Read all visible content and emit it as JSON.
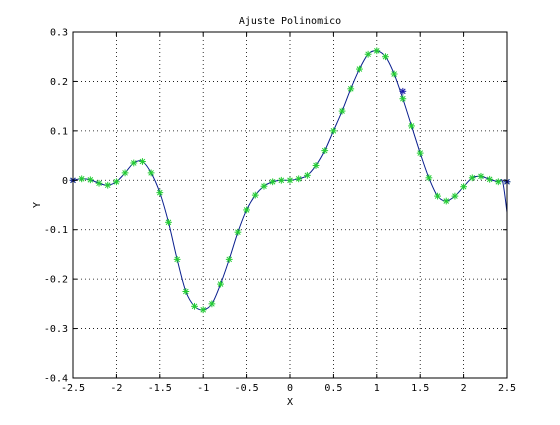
{
  "chart_data": {
    "type": "line",
    "title": "Ajuste Polinomico",
    "xlabel": "X",
    "ylabel": "Y",
    "xlim": [
      -2.5,
      2.5
    ],
    "ylim": [
      -0.4,
      0.3
    ],
    "grid": true,
    "legend": "none",
    "x_ticks": [
      -2.5,
      -2,
      -1.5,
      -1,
      -0.5,
      0,
      0.5,
      1,
      1.5,
      2,
      2.5
    ],
    "x_tick_labels": [
      "-2.5",
      "-2",
      "-1.5",
      "-1",
      "-0.5",
      "0",
      "0.5",
      "1",
      "1.5",
      "2",
      "2.5"
    ],
    "y_ticks": [
      -0.4,
      -0.3,
      -0.2,
      -0.1,
      0,
      0.1,
      0.2,
      0.3
    ],
    "y_tick_labels": [
      "-0.4",
      "-0.3",
      "-0.2",
      "-0.1",
      "0",
      "0.1",
      "0.2",
      "0.3"
    ],
    "series": [
      {
        "style": "line",
        "color": "#0a1f8f",
        "x": [
          -2.5,
          -2.4,
          -2.3,
          -2.2,
          -2.1,
          -2.0,
          -1.9,
          -1.8,
          -1.7,
          -1.6,
          -1.5,
          -1.4,
          -1.3,
          -1.2,
          -1.1,
          -1.0,
          -0.9,
          -0.8,
          -0.7,
          -0.6,
          -0.5,
          -0.4,
          -0.3,
          -0.2,
          -0.1,
          0.0,
          0.1,
          0.2,
          0.3,
          0.4,
          0.5,
          0.6,
          0.7,
          0.8,
          0.9,
          1.0,
          1.1,
          1.2,
          1.3,
          1.4,
          1.5,
          1.6,
          1.7,
          1.8,
          1.9,
          2.0,
          2.1,
          2.2,
          2.3,
          2.4,
          2.45,
          2.5
        ],
        "y": [
          0.0,
          0.003,
          0.001,
          -0.006,
          -0.01,
          -0.003,
          0.015,
          0.035,
          0.038,
          0.015,
          -0.025,
          -0.085,
          -0.16,
          -0.225,
          -0.255,
          -0.262,
          -0.25,
          -0.21,
          -0.16,
          -0.105,
          -0.06,
          -0.03,
          -0.012,
          -0.003,
          0.0,
          0.0,
          0.003,
          0.01,
          0.03,
          0.06,
          0.1,
          0.14,
          0.185,
          0.225,
          0.255,
          0.262,
          0.25,
          0.215,
          0.165,
          0.11,
          0.055,
          0.005,
          -0.032,
          -0.042,
          -0.032,
          -0.013,
          0.005,
          0.008,
          0.002,
          -0.003,
          -0.003,
          -0.065
        ]
      },
      {
        "style": "markers",
        "marker": "*",
        "color": "#22cc33",
        "x": [
          -2.5,
          -2.4,
          -2.3,
          -2.2,
          -2.1,
          -2.0,
          -1.9,
          -1.8,
          -1.7,
          -1.6,
          -1.5,
          -1.4,
          -1.3,
          -1.2,
          -1.1,
          -1.0,
          -0.9,
          -0.8,
          -0.7,
          -0.6,
          -0.5,
          -0.4,
          -0.3,
          -0.2,
          -0.1,
          0.0,
          0.1,
          0.2,
          0.3,
          0.4,
          0.5,
          0.6,
          0.7,
          0.8,
          0.9,
          1.0,
          1.1,
          1.2,
          1.3,
          1.4,
          1.5,
          1.6,
          1.7,
          1.8,
          1.9,
          2.0,
          2.1,
          2.2,
          2.3,
          2.4,
          2.5
        ],
        "y": [
          0.0,
          0.003,
          0.001,
          -0.006,
          -0.01,
          -0.003,
          0.015,
          0.035,
          0.038,
          0.015,
          -0.025,
          -0.085,
          -0.16,
          -0.225,
          -0.255,
          -0.262,
          -0.25,
          -0.21,
          -0.16,
          -0.105,
          -0.06,
          -0.03,
          -0.012,
          -0.003,
          0.0,
          0.0,
          0.003,
          0.01,
          0.03,
          0.06,
          0.1,
          0.14,
          0.185,
          0.225,
          0.255,
          0.262,
          0.25,
          0.215,
          0.165,
          0.11,
          0.055,
          0.005,
          -0.032,
          -0.042,
          -0.032,
          -0.013,
          0.005,
          0.008,
          0.002,
          -0.003,
          -0.003
        ]
      },
      {
        "style": "markers",
        "marker": "*",
        "color": "#1a1aa8",
        "x": [
          -2.5,
          1.3,
          2.5
        ],
        "y": [
          0.0,
          0.18,
          -0.003
        ]
      }
    ]
  }
}
